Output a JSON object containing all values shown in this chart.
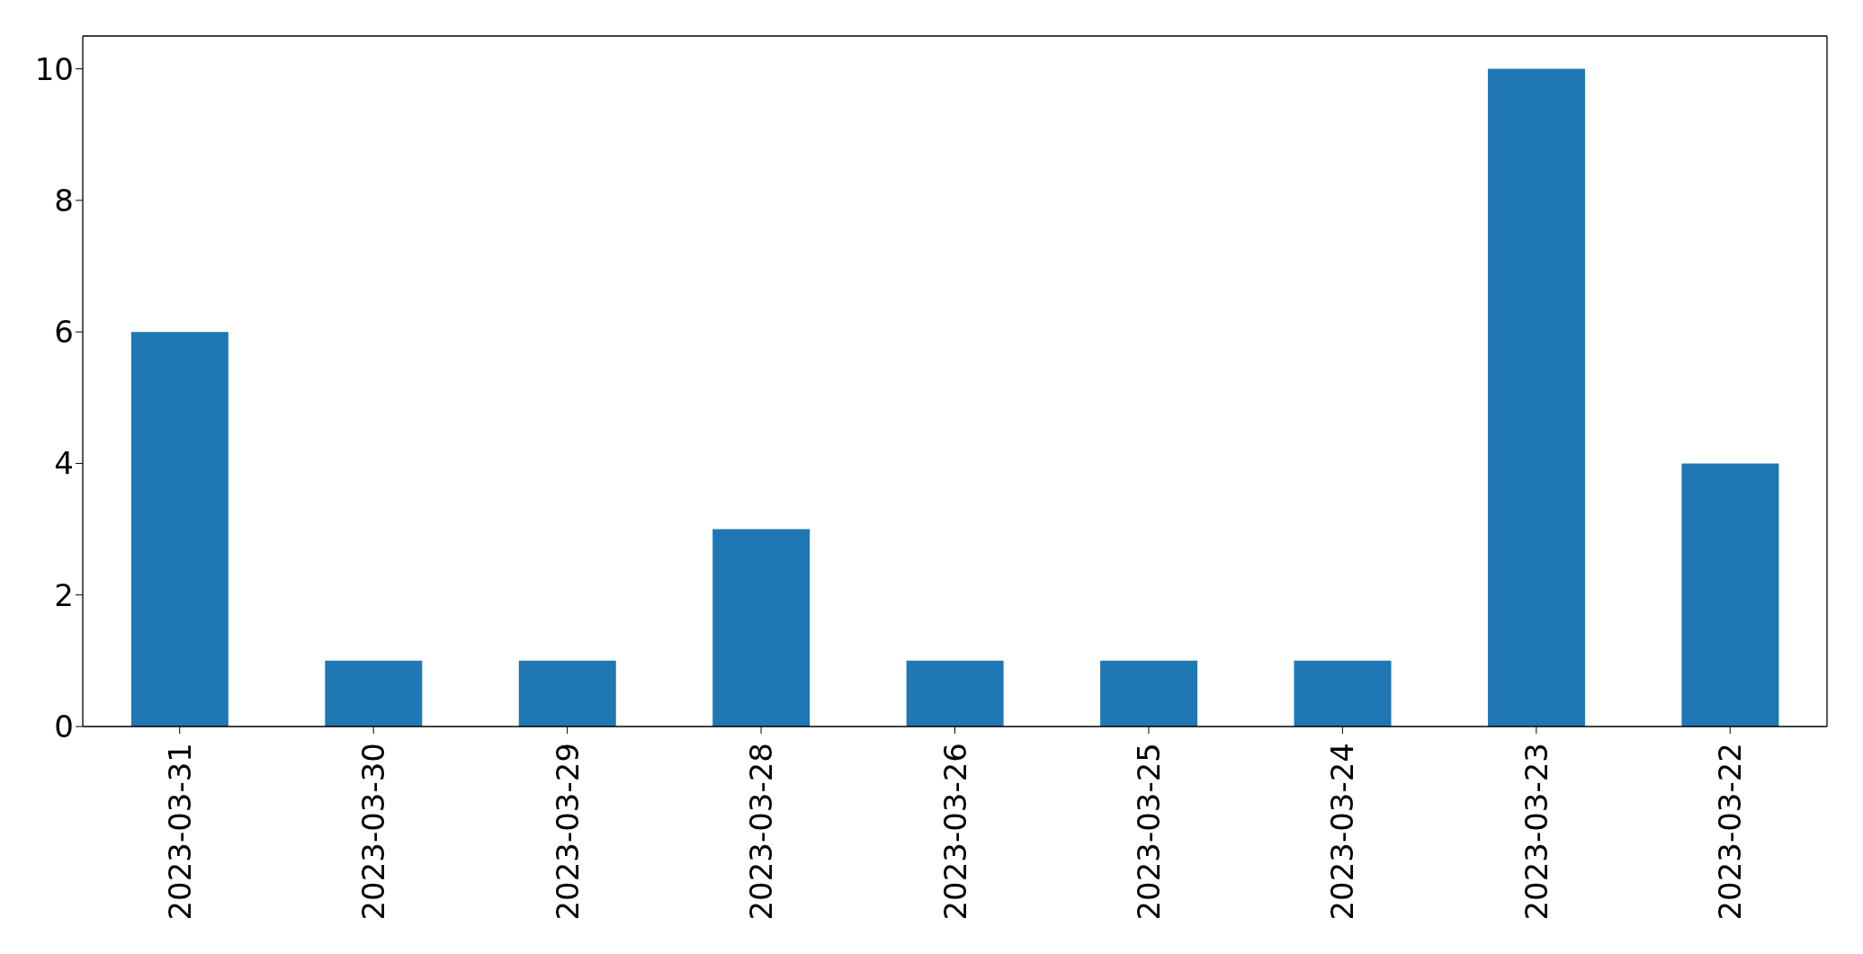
{
  "chart_data": {
    "type": "bar",
    "categories": [
      "2023-03-31",
      "2023-03-30",
      "2023-03-29",
      "2023-03-28",
      "2023-03-26",
      "2023-03-25",
      "2023-03-24",
      "2023-03-23",
      "2023-03-22"
    ],
    "values": [
      6,
      1,
      1,
      3,
      1,
      1,
      1,
      10,
      4
    ],
    "color": "#1f77b4",
    "ylim": [
      0,
      10.5
    ],
    "yticks": [
      0,
      2,
      4,
      6,
      8,
      10
    ]
  }
}
